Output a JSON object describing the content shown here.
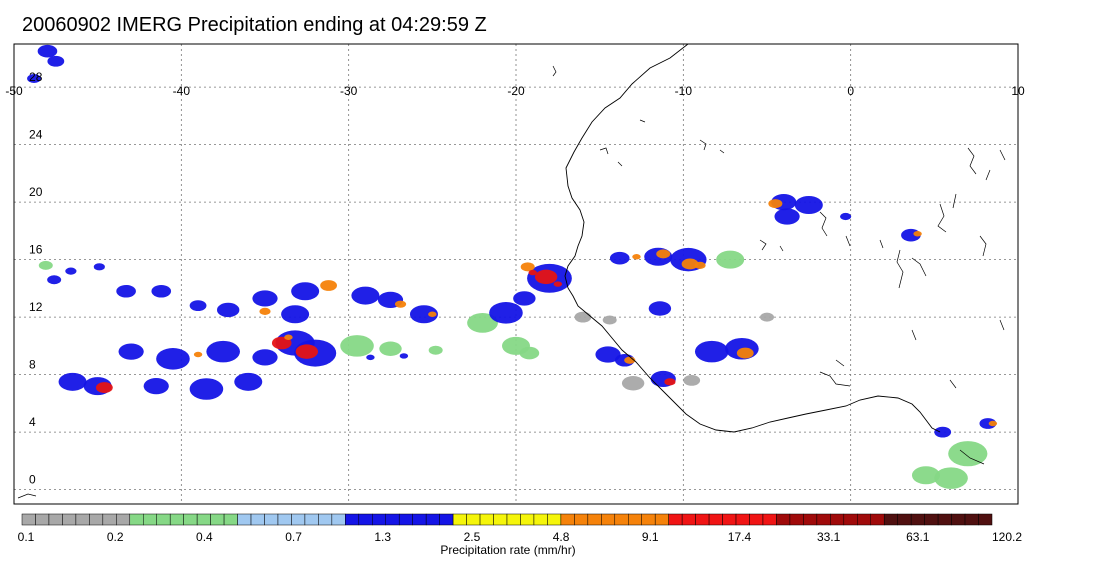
{
  "title": "20060902 IMERG Precipitation ending at 04:29:59 Z",
  "map": {
    "lon_range": [
      -50,
      10
    ],
    "lat_range": [
      -1,
      31
    ],
    "lon_ticks": [
      {
        "value": -50,
        "label": "-50"
      },
      {
        "value": -40,
        "label": "-40"
      },
      {
        "value": -30,
        "label": "-30"
      },
      {
        "value": -20,
        "label": "-20"
      },
      {
        "value": -10,
        "label": "-10"
      },
      {
        "value": 0,
        "label": "0"
      },
      {
        "value": 10,
        "label": "10"
      }
    ],
    "lat_ticks": [
      {
        "value": 0,
        "label": "0"
      },
      {
        "value": 4,
        "label": "4"
      },
      {
        "value": 8,
        "label": "8"
      },
      {
        "value": 12,
        "label": "12"
      },
      {
        "value": 16,
        "label": "16"
      },
      {
        "value": 20,
        "label": "20"
      },
      {
        "value": 24,
        "label": "24"
      },
      {
        "value": 28,
        "label": "28"
      }
    ],
    "gridlines": true,
    "coastline_color": "#000000"
  },
  "colorbar": {
    "label": "Precipitation rate (mm/hr)",
    "tick_labels": [
      "0.1",
      "0.2",
      "0.4",
      "0.7",
      "1.3",
      "2.5",
      "4.8",
      "9.1",
      "17.4",
      "33.1",
      "63.1",
      "120.2"
    ],
    "groups": [
      {
        "color": "#a8a8a8",
        "count": 8
      },
      {
        "color": "#86d886",
        "count": 8
      },
      {
        "color": "#a0c8f0",
        "count": 8
      },
      {
        "color": "#1414e6",
        "count": 8
      },
      {
        "color": "#f5f50a",
        "count": 8
      },
      {
        "color": "#f5820a",
        "count": 8
      },
      {
        "color": "#f01414",
        "count": 8
      },
      {
        "color": "#a00a0a",
        "count": 8
      },
      {
        "color": "#501010",
        "count": 8
      }
    ]
  }
}
